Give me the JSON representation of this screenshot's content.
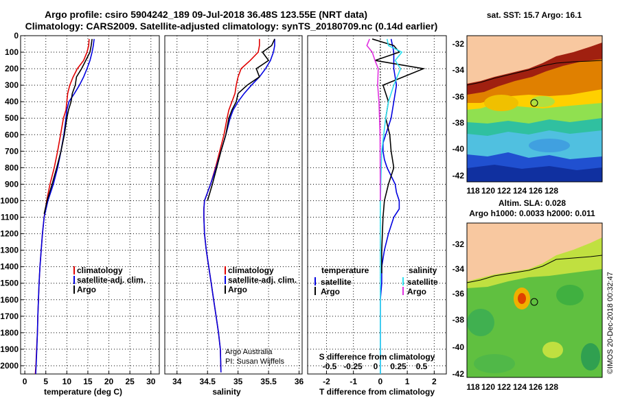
{
  "header": {
    "title_line1": "Argo profile: csiro 5904242_189 09-Jul-2018 36.48S 123.55E (NRT data)",
    "title_line2": "Climatology: CARS2009. Satellite-adjusted climatology: synTS_20180709.nc (0.14d earlier)"
  },
  "credit": {
    "org": "Argo Australia",
    "pi": "PI: Susan Wijffels",
    "stamp": "©IMOS 20-Dec-2018 00:32:47"
  },
  "colors": {
    "climatology": "#e00000",
    "satellite": "#0000e0",
    "argo": "#000000",
    "sal_satellite": "#30e0f0",
    "sal_argo": "#e030e0",
    "land": "#f8c8a0"
  },
  "maps": {
    "sst_title": "sat. SST: 15.7 Argo: 16.1",
    "sla_title1": "Altim. SLA: 0.028",
    "sla_title2": "Argo h1000: 0.0033 h2000: 0.011",
    "lon_ticks": [
      "118",
      "120",
      "122",
      "124",
      "126",
      "128"
    ],
    "lat_ticks": [
      "-32",
      "-34",
      "-36",
      "-38",
      "-40",
      "-42"
    ]
  },
  "chart_data": [
    {
      "type": "line",
      "title": "",
      "xlabel": "temperature (deg C)",
      "ylabel": "",
      "xlim": [
        -1,
        32
      ],
      "ylim": [
        2050,
        0
      ],
      "xticks": [
        "0",
        "5",
        "10",
        "15",
        "20",
        "25",
        "30"
      ],
      "yticks": [
        "0",
        "100",
        "200",
        "300",
        "400",
        "500",
        "600",
        "700",
        "800",
        "900",
        "1000",
        "1100",
        "1200",
        "1300",
        "1400",
        "1500",
        "1600",
        "1700",
        "1800",
        "1900",
        "2000"
      ],
      "legend": [
        "climatology",
        "satellite-adj. clim.",
        "Argo"
      ],
      "series": [
        {
          "name": "climatology",
          "color": "#e00000",
          "x": [
            15.3,
            15.2,
            14.8,
            14.0,
            12.5,
            11.5,
            10.7,
            10.2,
            10.0,
            9.8,
            9.2,
            8.5,
            7.8,
            7.0,
            6.0,
            5.2,
            4.6,
            4.2,
            3.9,
            3.6,
            3.4,
            3.25,
            3.1,
            3.0,
            2.8,
            2.65,
            2.5,
            2.4,
            2.35
          ],
          "y": [
            20,
            60,
            100,
            150,
            200,
            250,
            300,
            350,
            400,
            450,
            500,
            600,
            700,
            800,
            900,
            1000,
            1100,
            1200,
            1300,
            1400,
            1500,
            1600,
            1700,
            1800,
            1900,
            2000,
            2050,
            2060,
            2070
          ]
        },
        {
          "name": "satellite-adj. clim.",
          "color": "#0000e0",
          "x": [
            16.5,
            16.3,
            16.0,
            15.5,
            14.8,
            14.0,
            13.0,
            11.8,
            10.5,
            10.0,
            9.8,
            9.3,
            8.6,
            7.8,
            6.8,
            5.5,
            4.6,
            4.2,
            3.9,
            3.6,
            3.4,
            3.25,
            3.1,
            3.0,
            2.85,
            2.7,
            2.6
          ],
          "y": [
            20,
            60,
            100,
            150,
            200,
            250,
            300,
            350,
            400,
            450,
            500,
            600,
            700,
            800,
            900,
            1000,
            1100,
            1200,
            1300,
            1400,
            1500,
            1600,
            1700,
            1800,
            1900,
            2000,
            2050
          ]
        },
        {
          "name": "Argo",
          "color": "#000000",
          "x": [
            16.0,
            15.8,
            15.5,
            14.5,
            13.5,
            12.3,
            12.0,
            11.3,
            11.0,
            10.4,
            10.0,
            9.4,
            8.6,
            7.6,
            6.5,
            5.3,
            4.6
          ],
          "y": [
            20,
            60,
            100,
            150,
            200,
            250,
            300,
            350,
            400,
            450,
            500,
            600,
            700,
            800,
            900,
            1000,
            1080
          ]
        }
      ]
    },
    {
      "type": "line",
      "title": "",
      "xlabel": "salinity",
      "ylabel": "",
      "xlim": [
        33.8,
        36.05
      ],
      "ylim": [
        2050,
        0
      ],
      "xticks": [
        "34",
        "34.5",
        "35",
        "35.5",
        "36"
      ],
      "yticks": [],
      "legend": [
        "climatology",
        "satellite-adj. clim.",
        "Argo"
      ],
      "series": [
        {
          "name": "climatology",
          "color": "#e00000",
          "x": [
            35.35,
            35.35,
            35.33,
            35.2,
            35.05,
            35.0,
            34.97,
            34.95,
            34.9,
            34.85,
            34.82,
            34.77,
            34.7,
            34.63,
            34.55,
            34.5,
            34.45,
            34.44,
            34.44,
            34.45,
            34.48,
            34.52,
            34.56,
            34.6,
            34.64,
            34.68,
            34.71,
            34.72
          ],
          "y": [
            20,
            60,
            100,
            150,
            200,
            250,
            300,
            350,
            400,
            450,
            500,
            600,
            700,
            800,
            900,
            950,
            1000,
            1050,
            1100,
            1200,
            1300,
            1400,
            1500,
            1600,
            1700,
            1800,
            1900,
            2040
          ]
        },
        {
          "name": "satellite-adj. clim.",
          "color": "#0000e0",
          "x": [
            35.6,
            35.6,
            35.58,
            35.53,
            35.45,
            35.35,
            35.22,
            35.1,
            35.0,
            34.92,
            34.87,
            34.8,
            34.72,
            34.64,
            34.55,
            34.5,
            34.45,
            34.44,
            34.44,
            34.45,
            34.48,
            34.52,
            34.56,
            34.6,
            34.64,
            34.68,
            34.71,
            34.72
          ],
          "y": [
            20,
            60,
            100,
            150,
            200,
            250,
            300,
            350,
            400,
            450,
            500,
            600,
            700,
            800,
            900,
            950,
            1000,
            1050,
            1100,
            1200,
            1300,
            1400,
            1500,
            1600,
            1700,
            1800,
            1900,
            2040
          ]
        },
        {
          "name": "Argo",
          "color": "#000000",
          "x": [
            35.6,
            35.55,
            35.4,
            35.5,
            35.3,
            35.35,
            35.15,
            35.0,
            34.97,
            34.9,
            34.85,
            34.8,
            34.72,
            34.65,
            34.58,
            34.5
          ],
          "y": [
            20,
            60,
            100,
            150,
            200,
            250,
            300,
            350,
            400,
            450,
            500,
            600,
            700,
            800,
            900,
            1000
          ]
        }
      ]
    },
    {
      "type": "line",
      "title": "",
      "xlabel": "T difference from climatology",
      "ylabel": "",
      "xlim": [
        -2.7,
        2.45
      ],
      "ylim": [
        2050,
        0
      ],
      "xticks": [
        "-2",
        "-1",
        "0",
        "1",
        "2"
      ],
      "x2label": "S difference from climatology",
      "x2ticks": [
        "-0.5",
        "-0.25",
        "0",
        "0.25",
        "0.5"
      ],
      "yticks": [],
      "legend": [
        "temperature",
        "satellite",
        "Argo",
        "salinity",
        "satellite",
        "Argo"
      ],
      "series": [
        {
          "name": "satellite",
          "color": "#0000e0",
          "x": [
            0.4,
            0.5,
            0.5,
            0.6,
            0.5,
            0.4,
            0.2,
            0.1,
            0.1,
            0.15,
            0.25,
            0.4,
            0.55,
            0.6,
            0.7,
            0.7,
            0.5,
            0.3,
            0.15,
            0.05,
            0.05,
            0.0,
            0.0,
            0.0,
            0.0
          ],
          "y": [
            20,
            100,
            200,
            300,
            400,
            500,
            600,
            650,
            700,
            750,
            800,
            850,
            900,
            950,
            1000,
            1050,
            1100,
            1200,
            1300,
            1400,
            1500,
            1600,
            1700,
            1800,
            2050
          ]
        },
        {
          "name": "Argo",
          "color": "#000000",
          "x": [
            -0.3,
            0.5,
            0.7,
            -0.2,
            1.6,
            0.1,
            0.3,
            0.2,
            0.35,
            0.4,
            0.5,
            0.3,
            0.15,
            0.1,
            0.05,
            0.05
          ],
          "y": [
            20,
            60,
            100,
            150,
            200,
            300,
            400,
            500,
            600,
            700,
            800,
            900,
            1000,
            1100,
            1300,
            1440
          ]
        },
        {
          "name": "salinity satellite",
          "color": "#30e0f0",
          "x": [
            0.25,
            0.3,
            0.8,
            0.55,
            0.75,
            0.5,
            0.3,
            0.2,
            0.05,
            0.0,
            0.0,
            0.0
          ],
          "y": [
            20,
            60,
            100,
            150,
            200,
            300,
            400,
            500,
            700,
            1000,
            1400,
            2050
          ]
        },
        {
          "name": "salinity Argo",
          "color": "#e030e0",
          "x": [
            -0.4,
            -0.5,
            -0.3,
            -0.2,
            -0.08,
            -0.1,
            -0.05,
            -0.01,
            0.0
          ],
          "y": [
            20,
            60,
            100,
            150,
            200,
            300,
            400,
            600,
            1000
          ]
        }
      ]
    }
  ]
}
